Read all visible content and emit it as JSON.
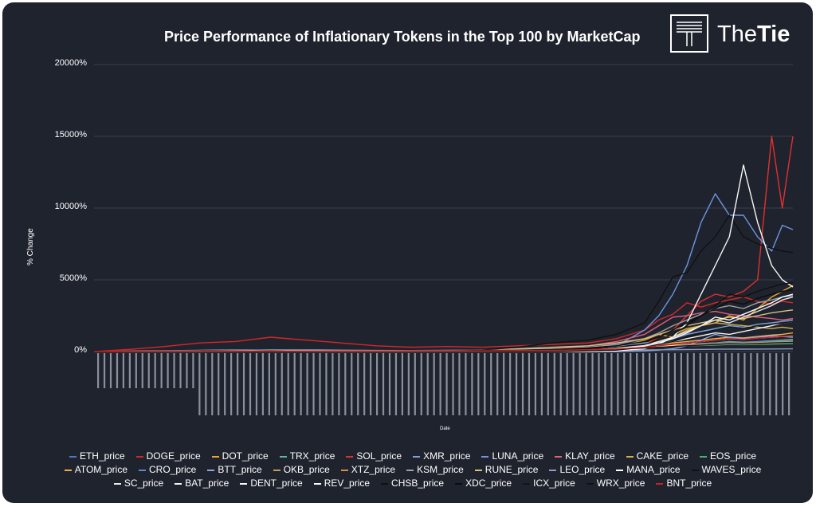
{
  "header": {
    "title": "Price Performance of Inflationary Tokens in the Top 100 by MarketCap",
    "brand_light": "The",
    "brand_bold": "Tie"
  },
  "chart_data": {
    "type": "line",
    "title": "Price Performance of Inflationary Tokens in the Top 100 by MarketCap",
    "xlabel": "Date",
    "ylabel": "% Change",
    "ylim": [
      0,
      20000
    ],
    "yticks": [
      "0%",
      "5000%",
      "10000%",
      "15000%",
      "20000%"
    ],
    "grid": true,
    "legend_position": "bottom",
    "x": [
      0,
      50,
      100,
      150,
      200,
      250,
      300,
      350,
      400,
      450,
      500,
      550,
      600,
      650,
      700,
      740,
      780,
      800,
      820,
      840,
      860,
      880,
      900,
      920,
      940,
      960,
      975,
      990
    ],
    "series": [
      {
        "name": "ETH_price",
        "color": "#4e79c7",
        "values": [
          0,
          20,
          40,
          60,
          80,
          100,
          100,
          80,
          70,
          60,
          80,
          100,
          150,
          200,
          300,
          400,
          600,
          700,
          900,
          1200,
          1400,
          1500,
          1700,
          1600,
          1800,
          1900,
          2000,
          2100
        ]
      },
      {
        "name": "DOGE_price",
        "color": "#d62728",
        "values": [
          0,
          150,
          350,
          600,
          700,
          1000,
          800,
          600,
          400,
          300,
          350,
          300,
          400,
          500,
          600,
          900,
          1500,
          2200,
          2600,
          3400,
          3100,
          3400,
          3600,
          3800,
          3500,
          3300,
          3500,
          3400
        ]
      },
      {
        "name": "DOT_price",
        "color": "#e6a82e",
        "values": [
          0,
          0,
          0,
          0,
          0,
          0,
          0,
          0,
          0,
          0,
          0,
          0,
          50,
          100,
          200,
          300,
          800,
          1200,
          1000,
          1500,
          1800,
          2000,
          2500,
          2200,
          3000,
          3800,
          4200,
          4600
        ]
      },
      {
        "name": "TRX_price",
        "color": "#5fb3a8",
        "values": [
          0,
          10,
          20,
          30,
          40,
          50,
          30,
          20,
          20,
          30,
          40,
          60,
          80,
          100,
          150,
          200,
          300,
          350,
          400,
          500,
          550,
          600,
          700,
          650,
          700,
          750,
          800,
          850
        ]
      },
      {
        "name": "SOL_price",
        "color": "#e03030",
        "values": [
          0,
          0,
          0,
          0,
          0,
          0,
          0,
          0,
          0,
          0,
          0,
          0,
          0,
          50,
          100,
          200,
          500,
          1000,
          1500,
          2500,
          3500,
          4000,
          3800,
          4200,
          5000,
          15000,
          10000,
          15000
        ]
      },
      {
        "name": "XMR_price",
        "color": "#7f9fd8",
        "values": [
          0,
          30,
          60,
          90,
          110,
          130,
          110,
          90,
          80,
          70,
          90,
          110,
          150,
          200,
          300,
          400,
          600,
          700,
          900,
          1200,
          1400,
          1600,
          1800,
          1700,
          1900,
          2000,
          2100,
          2200
        ]
      },
      {
        "name": "LUNA_price",
        "color": "#6f95e0",
        "values": [
          0,
          0,
          0,
          0,
          0,
          0,
          0,
          0,
          0,
          0,
          0,
          0,
          50,
          100,
          200,
          400,
          1500,
          2500,
          4000,
          6000,
          9000,
          11000,
          9500,
          9500,
          8000,
          7000,
          8800,
          8500
        ]
      },
      {
        "name": "KLAY_price",
        "color": "#e0607a",
        "values": [
          0,
          0,
          0,
          0,
          0,
          0,
          0,
          0,
          0,
          0,
          0,
          0,
          100,
          200,
          400,
          700,
          1200,
          1800,
          2400,
          2500,
          2700,
          2800,
          2600,
          2500,
          2400,
          2300,
          2200,
          2300
        ]
      },
      {
        "name": "CAKE_price",
        "color": "#d4b048",
        "values": [
          0,
          0,
          0,
          0,
          0,
          0,
          0,
          0,
          0,
          0,
          0,
          0,
          0,
          0,
          0,
          50,
          300,
          800,
          1200,
          1600,
          1800,
          2000,
          1900,
          1800,
          1700,
          1600,
          1700,
          1600
        ]
      },
      {
        "name": "EOS_price",
        "color": "#4caf7a",
        "values": [
          0,
          10,
          20,
          30,
          40,
          50,
          40,
          30,
          30,
          30,
          40,
          50,
          60,
          80,
          120,
          160,
          250,
          300,
          350,
          400,
          420,
          450,
          500,
          480,
          500,
          520,
          540,
          560
        ]
      },
      {
        "name": "ATOM_price",
        "color": "#f0b040",
        "values": [
          0,
          10,
          20,
          30,
          40,
          50,
          40,
          30,
          30,
          40,
          50,
          60,
          80,
          120,
          180,
          250,
          400,
          500,
          600,
          700,
          800,
          900,
          1000,
          950,
          1050,
          1150,
          1200,
          1300
        ]
      },
      {
        "name": "CRO_price",
        "color": "#5a8ad0",
        "values": [
          0,
          20,
          40,
          60,
          80,
          100,
          80,
          60,
          50,
          40,
          50,
          70,
          90,
          130,
          180,
          250,
          350,
          400,
          450,
          500,
          550,
          600,
          650,
          620,
          680,
          700,
          720,
          750
        ]
      },
      {
        "name": "BTT_price",
        "color": "#8fa8e0",
        "values": [
          0,
          0,
          0,
          0,
          0,
          0,
          0,
          0,
          0,
          0,
          0,
          0,
          0,
          0,
          0,
          0,
          50,
          100,
          200,
          400,
          800,
          1200,
          1000,
          900,
          1000,
          1100,
          1050,
          1000
        ]
      },
      {
        "name": "OKB_price",
        "color": "#c99a5a",
        "values": [
          0,
          10,
          20,
          30,
          40,
          50,
          40,
          30,
          30,
          40,
          50,
          70,
          90,
          120,
          160,
          220,
          300,
          350,
          400,
          450,
          500,
          550,
          600,
          580,
          620,
          650,
          680,
          700
        ]
      },
      {
        "name": "XTZ_price",
        "color": "#e08a40",
        "values": [
          0,
          15,
          30,
          45,
          60,
          80,
          70,
          60,
          50,
          50,
          60,
          80,
          100,
          130,
          170,
          220,
          300,
          340,
          380,
          420,
          460,
          500,
          540,
          520,
          560,
          590,
          610,
          630
        ]
      },
      {
        "name": "KSM_price",
        "color": "#a0a0a0",
        "values": [
          0,
          0,
          0,
          0,
          0,
          0,
          0,
          0,
          0,
          0,
          0,
          0,
          100,
          200,
          300,
          500,
          900,
          1300,
          1800,
          2200,
          2600,
          3000,
          3200,
          3000,
          3400,
          3600,
          3800,
          3900
        ]
      },
      {
        "name": "RUNE_price",
        "color": "#d8c080",
        "values": [
          0,
          0,
          0,
          0,
          0,
          0,
          0,
          0,
          0,
          0,
          50,
          100,
          200,
          300,
          400,
          600,
          900,
          1200,
          1500,
          1800,
          2000,
          2200,
          2400,
          2300,
          2500,
          2700,
          2800,
          2900
        ]
      },
      {
        "name": "LEO_price",
        "color": "#8a9cc0",
        "values": [
          0,
          5,
          10,
          15,
          20,
          25,
          20,
          15,
          15,
          20,
          25,
          30,
          40,
          50,
          70,
          90,
          110,
          120,
          130,
          140,
          150,
          160,
          170,
          165,
          175,
          180,
          185,
          190
        ]
      },
      {
        "name": "MANA_price",
        "color": "#ffffff",
        "values": [
          0,
          20,
          40,
          60,
          80,
          100,
          90,
          80,
          70,
          60,
          70,
          90,
          120,
          160,
          220,
          300,
          450,
          600,
          900,
          1300,
          1800,
          2400,
          2200,
          2600,
          3000,
          3400,
          3800,
          4000
        ]
      },
      {
        "name": "WAVES_price",
        "color": "#111111",
        "values": [
          0,
          20,
          40,
          60,
          80,
          100,
          80,
          60,
          50,
          50,
          70,
          100,
          300,
          600,
          800,
          1200,
          2000,
          3500,
          5200,
          5500,
          7000,
          8000,
          9500,
          8000,
          7500,
          7200,
          7000,
          6900
        ]
      },
      {
        "name": "SC_price",
        "color": "#e8e8e8",
        "values": [
          0,
          15,
          30,
          45,
          60,
          80,
          70,
          60,
          50,
          45,
          55,
          70,
          90,
          120,
          160,
          220,
          400,
          700,
          1000,
          1400,
          1800,
          2200,
          2000,
          2400,
          2800,
          3200,
          3600,
          3800
        ]
      },
      {
        "name": "BAT_price",
        "color": "#f4f4f4",
        "values": [
          0,
          15,
          30,
          45,
          60,
          80,
          70,
          60,
          50,
          45,
          55,
          70,
          90,
          120,
          160,
          220,
          350,
          500,
          700,
          900,
          1100,
          1300,
          1200,
          1400,
          1600,
          1800,
          2000,
          2100
        ]
      },
      {
        "name": "DENT_price",
        "color": "#f8f8f8",
        "values": [
          0,
          0,
          0,
          0,
          0,
          0,
          0,
          0,
          0,
          0,
          0,
          0,
          0,
          0,
          0,
          50,
          200,
          500,
          1000,
          2000,
          4000,
          6000,
          8000,
          13000,
          9000,
          6000,
          5000,
          4500
        ]
      },
      {
        "name": "REV_price",
        "color": "#fafafa",
        "values": [
          0,
          10,
          20,
          30,
          40,
          50,
          40,
          30,
          30,
          30,
          40,
          50,
          70,
          90,
          120,
          160,
          250,
          350,
          450,
          600,
          700,
          800,
          900,
          850,
          950,
          1000,
          1050,
          1100
        ]
      },
      {
        "name": "CHSB_price",
        "color": "#101010",
        "values": [
          0,
          10,
          20,
          30,
          40,
          50,
          40,
          30,
          30,
          30,
          40,
          60,
          90,
          130,
          200,
          300,
          500,
          800,
          1200,
          1800,
          2500,
          3200,
          4000,
          3800,
          4200,
          4500,
          4700,
          4800
        ]
      },
      {
        "name": "XDC_price",
        "color": "#0d0d0d",
        "values": [
          0,
          5,
          10,
          15,
          20,
          30,
          30,
          30,
          30,
          40,
          50,
          70,
          100,
          150,
          250,
          400,
          700,
          1000,
          1500,
          2000,
          2500,
          3000,
          3500,
          3300,
          3700,
          4000,
          4200,
          4300
        ]
      },
      {
        "name": "ICX_price",
        "color": "#151515",
        "values": [
          0,
          10,
          20,
          30,
          40,
          50,
          40,
          30,
          30,
          30,
          40,
          50,
          70,
          90,
          130,
          170,
          250,
          300,
          350,
          400,
          450,
          500,
          550,
          520,
          560,
          600,
          620,
          640
        ]
      },
      {
        "name": "WRX_price",
        "color": "#121212",
        "values": [
          0,
          0,
          0,
          0,
          0,
          0,
          0,
          0,
          0,
          0,
          0,
          0,
          0,
          0,
          50,
          100,
          300,
          500,
          700,
          1000,
          1300,
          1500,
          1700,
          1600,
          1800,
          1900,
          2000,
          2100
        ]
      },
      {
        "name": "BNT_price",
        "color": "#c82020",
        "values": [
          0,
          10,
          20,
          30,
          40,
          50,
          40,
          30,
          30,
          30,
          40,
          50,
          70,
          90,
          130,
          180,
          300,
          400,
          500,
          600,
          700,
          800,
          900,
          850,
          950,
          1000,
          1050,
          1100
        ]
      }
    ]
  }
}
